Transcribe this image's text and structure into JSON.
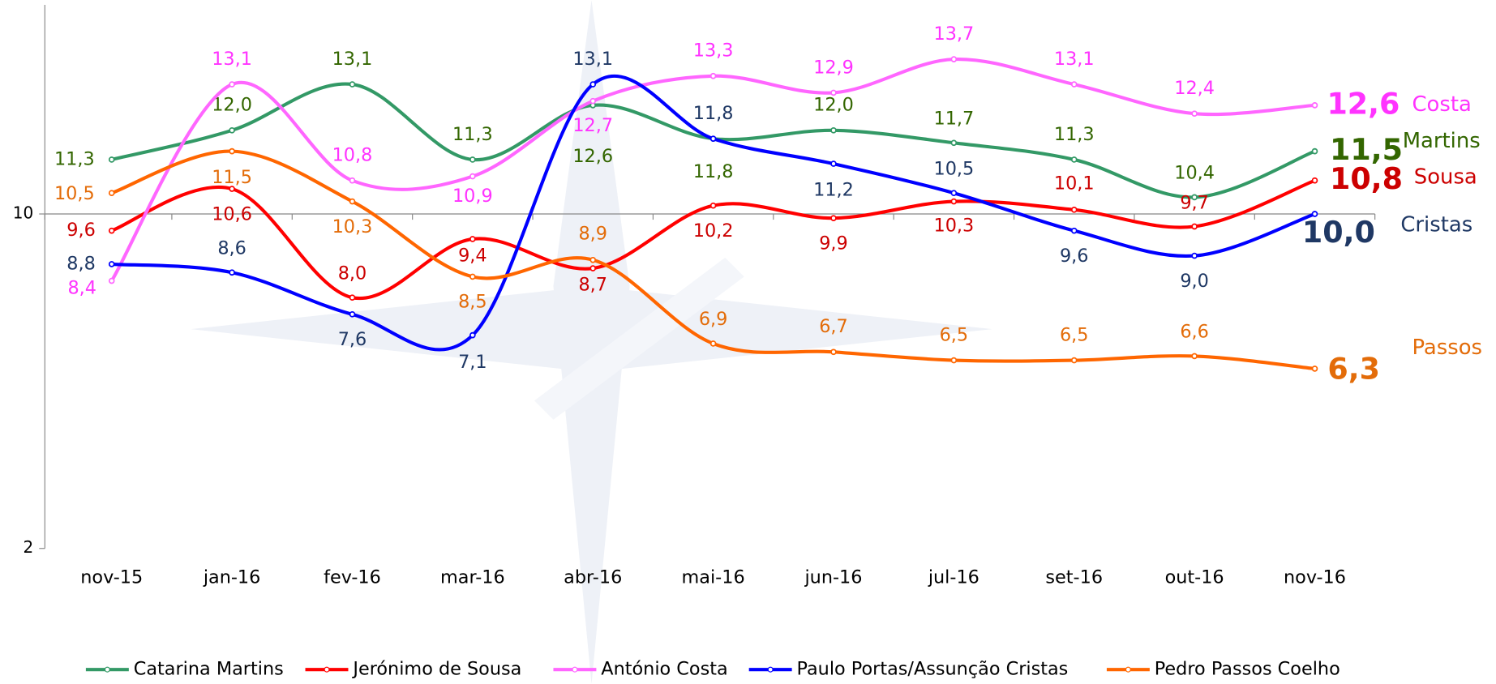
{
  "chart_data": {
    "type": "line",
    "smooth": true,
    "categories": [
      "nov-15",
      "jan-16",
      "fev-16",
      "mar-16",
      "abr-16",
      "mai-16",
      "jun-16",
      "jul-16",
      "set-16",
      "out-16",
      "nov-16"
    ],
    "ylim": [
      2,
      15
    ],
    "yticks": [
      2,
      10
    ],
    "x_axis_crosses": 10,
    "series": [
      {
        "name": "Catarina Martins",
        "tag": "Martins",
        "color": "#339966",
        "label_color": "#336600",
        "values": [
          11.3,
          12.0,
          13.1,
          11.3,
          12.6,
          11.8,
          12.0,
          11.7,
          11.3,
          10.4,
          11.5
        ],
        "value_labels": [
          "11,3",
          "12,0",
          "13,1",
          "11,3",
          "12,6",
          "11,8",
          "12,0",
          "11,7",
          "11,3",
          "10,4",
          "11,5"
        ]
      },
      {
        "name": "Jerónimo de Sousa",
        "tag": "Sousa",
        "color": "#ff0000",
        "label_color": "#cc0000",
        "values": [
          9.6,
          10.6,
          8.0,
          9.4,
          8.7,
          10.2,
          9.9,
          10.3,
          10.1,
          9.7,
          10.8
        ],
        "value_labels": [
          "9,6",
          "10,6",
          "8,0",
          "9,4",
          "8,7",
          "10,2",
          "9,9",
          "10,3",
          "10,1",
          "9,7",
          "10,8"
        ]
      },
      {
        "name": "António Costa",
        "tag": "Costa",
        "color": "#ff66ff",
        "label_color": "#ff33ff",
        "values": [
          8.4,
          13.1,
          10.8,
          10.9,
          12.7,
          13.3,
          12.9,
          13.7,
          13.1,
          12.4,
          12.6
        ],
        "value_labels": [
          "8,4",
          "13,1",
          "10,8",
          "10,9",
          "12,7",
          "13,3",
          "12,9",
          "13,7",
          "13,1",
          "12,4",
          "12,6"
        ]
      },
      {
        "name": "Paulo Portas/Assunção Cristas",
        "tag": "Cristas",
        "color": "#0000ff",
        "label_color": "#1f3864",
        "values": [
          8.8,
          8.6,
          7.6,
          7.1,
          13.1,
          11.8,
          11.2,
          10.5,
          9.6,
          9.0,
          10.0
        ],
        "value_labels": [
          "8,8",
          "8,6",
          "7,6",
          "7,1",
          "13,1",
          "11,8",
          "11,2",
          "10,5",
          "9,6",
          "9,0",
          "10,0"
        ]
      },
      {
        "name": "Pedro Passos Coelho",
        "tag": "Passos",
        "color": "#ff6600",
        "label_color": "#e36c09",
        "values": [
          10.5,
          11.5,
          10.3,
          8.5,
          8.9,
          6.9,
          6.7,
          6.5,
          6.5,
          6.6,
          6.3
        ],
        "value_labels": [
          "10,5",
          "11,5",
          "10,3",
          "8,5",
          "8,9",
          "6,9",
          "6,7",
          "6,5",
          "6,5",
          "6,6",
          "6,3"
        ]
      }
    ]
  }
}
